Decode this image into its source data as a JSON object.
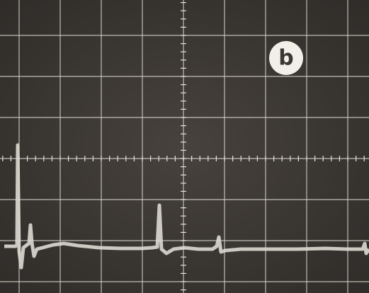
{
  "label": "b"
}
